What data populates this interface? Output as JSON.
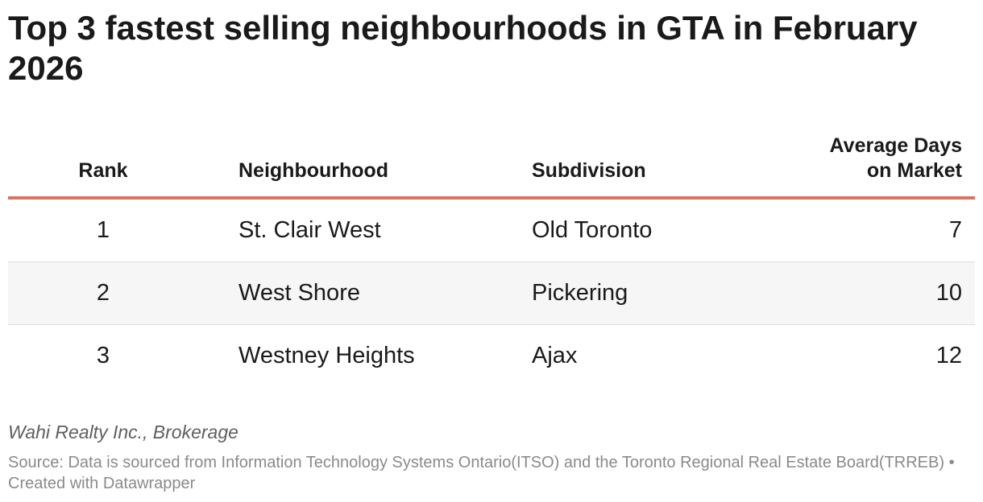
{
  "chart_data": {
    "type": "table",
    "title": "Top 3 fastest selling neighbourhoods in GTA in February 2026",
    "columns": [
      "Rank",
      "Neighbourhood",
      "Subdivision",
      "Average Days on Market"
    ],
    "rows": [
      [
        "1",
        "St. Clair West",
        "Old Toronto",
        "7"
      ],
      [
        "2",
        "West Shore",
        "Pickering",
        "10"
      ],
      [
        "3",
        "Westney Heights",
        "Ajax",
        "12"
      ]
    ],
    "byline": "Wahi Realty Inc., Brokerage",
    "source": "Source: Data is sourced from Information Technology Systems Ontario(ITSO) and the Toronto Regional Real Estate Board(TRREB) • Created with Datawrapper"
  },
  "colors": {
    "header_rule": "#e07060",
    "alt_row": "#f6f6f6",
    "row_divider": "#dcdcdc"
  }
}
